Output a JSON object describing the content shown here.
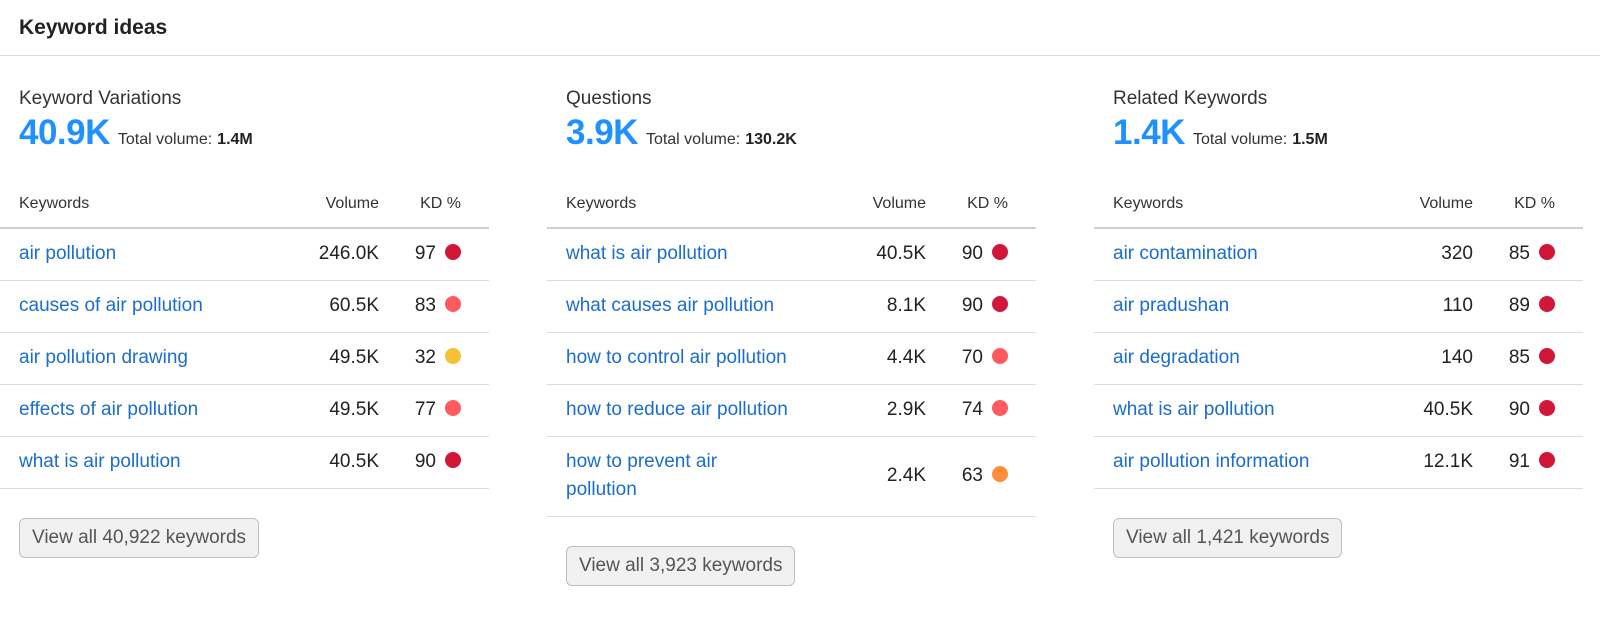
{
  "header": {
    "title": "Keyword ideas"
  },
  "columns": {
    "keywords": "Keywords",
    "volume": "Volume",
    "kd": "KD %"
  },
  "total_label": "Total volume:",
  "kd_colors": {
    "very_hard": "#d0173a",
    "hard": "#ff5a5f",
    "possible": "#f7c137",
    "difficult": "#ff8c3a"
  },
  "panels": [
    {
      "title": "Keyword Variations",
      "count": "40.9K",
      "total_volume": "1.4M",
      "rows": [
        {
          "keyword": "air pollution",
          "volume": "246.0K",
          "kd": "97",
          "dot": "#d0173a"
        },
        {
          "keyword": "causes of air pollution",
          "volume": "60.5K",
          "kd": "83",
          "dot": "#ff5a5f"
        },
        {
          "keyword": "air pollution drawing",
          "volume": "49.5K",
          "kd": "32",
          "dot": "#f7c137"
        },
        {
          "keyword": "effects of air pollution",
          "volume": "49.5K",
          "kd": "77",
          "dot": "#ff5a5f"
        },
        {
          "keyword": "what is air pollution",
          "volume": "40.5K",
          "kd": "90",
          "dot": "#d0173a"
        }
      ],
      "view_all": "View all 40,922 keywords"
    },
    {
      "title": "Questions",
      "count": "3.9K",
      "total_volume": "130.2K",
      "rows": [
        {
          "keyword": "what is air pollution",
          "volume": "40.5K",
          "kd": "90",
          "dot": "#d0173a"
        },
        {
          "keyword": "what causes air pollution",
          "volume": "8.1K",
          "kd": "90",
          "dot": "#d0173a"
        },
        {
          "keyword": "how to control air pollution",
          "volume": "4.4K",
          "kd": "70",
          "dot": "#ff5a5f"
        },
        {
          "keyword": "how to reduce air pollution",
          "volume": "2.9K",
          "kd": "74",
          "dot": "#ff5a5f"
        },
        {
          "keyword": "how to prevent air pollution",
          "volume": "2.4K",
          "kd": "63",
          "dot": "#ff8c3a"
        }
      ],
      "view_all": "View all 3,923 keywords"
    },
    {
      "title": "Related Keywords",
      "count": "1.4K",
      "total_volume": "1.5M",
      "rows": [
        {
          "keyword": "air contamination",
          "volume": "320",
          "kd": "85",
          "dot": "#d0173a"
        },
        {
          "keyword": "air pradushan",
          "volume": "110",
          "kd": "89",
          "dot": "#d0173a"
        },
        {
          "keyword": "air degradation",
          "volume": "140",
          "kd": "85",
          "dot": "#d0173a"
        },
        {
          "keyword": "what is air pollution",
          "volume": "40.5K",
          "kd": "90",
          "dot": "#d0173a"
        },
        {
          "keyword": "air pollution information",
          "volume": "12.1K",
          "kd": "91",
          "dot": "#d0173a"
        }
      ],
      "view_all": "View all 1,421 keywords"
    }
  ]
}
